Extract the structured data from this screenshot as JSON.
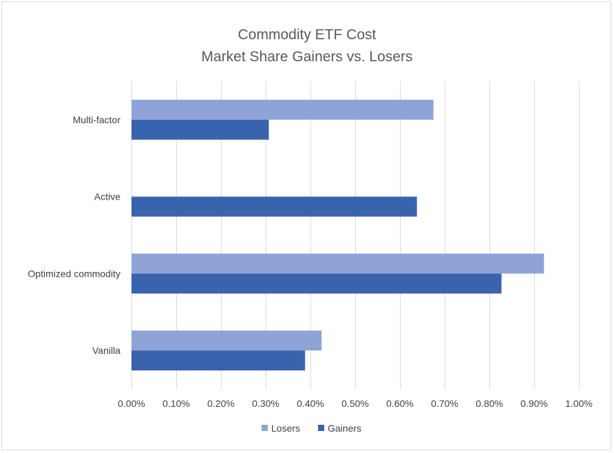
{
  "chart_data": {
    "type": "bar",
    "orientation": "horizontal",
    "title_lines": [
      "Commodity ETF Cost",
      "Market Share Gainers vs. Losers"
    ],
    "categories": [
      "Multi-factor",
      "Active",
      "Optimized commodity",
      "Vanilla"
    ],
    "series": [
      {
        "name": "Losers",
        "color": "#8FA3D6",
        "values": [
          0.675,
          null,
          0.922,
          0.425
        ]
      },
      {
        "name": "Gainers",
        "color": "#3A63AD",
        "values": [
          0.307,
          0.638,
          0.827,
          0.388
        ]
      }
    ],
    "xlim": [
      0,
      1.0
    ],
    "x_ticks": [
      0,
      0.1,
      0.2,
      0.3,
      0.4,
      0.5,
      0.6,
      0.7,
      0.8,
      0.9,
      1.0
    ],
    "x_tick_labels": [
      "0.00%",
      "0.10%",
      "0.20%",
      "0.30%",
      "0.40%",
      "0.50%",
      "0.60%",
      "0.70%",
      "0.80%",
      "0.90%",
      "1.00%"
    ],
    "xlabel": "",
    "ylabel": "",
    "grid": "vertical",
    "legend_position": "bottom",
    "legend_order": [
      "Losers",
      "Gainers"
    ]
  }
}
